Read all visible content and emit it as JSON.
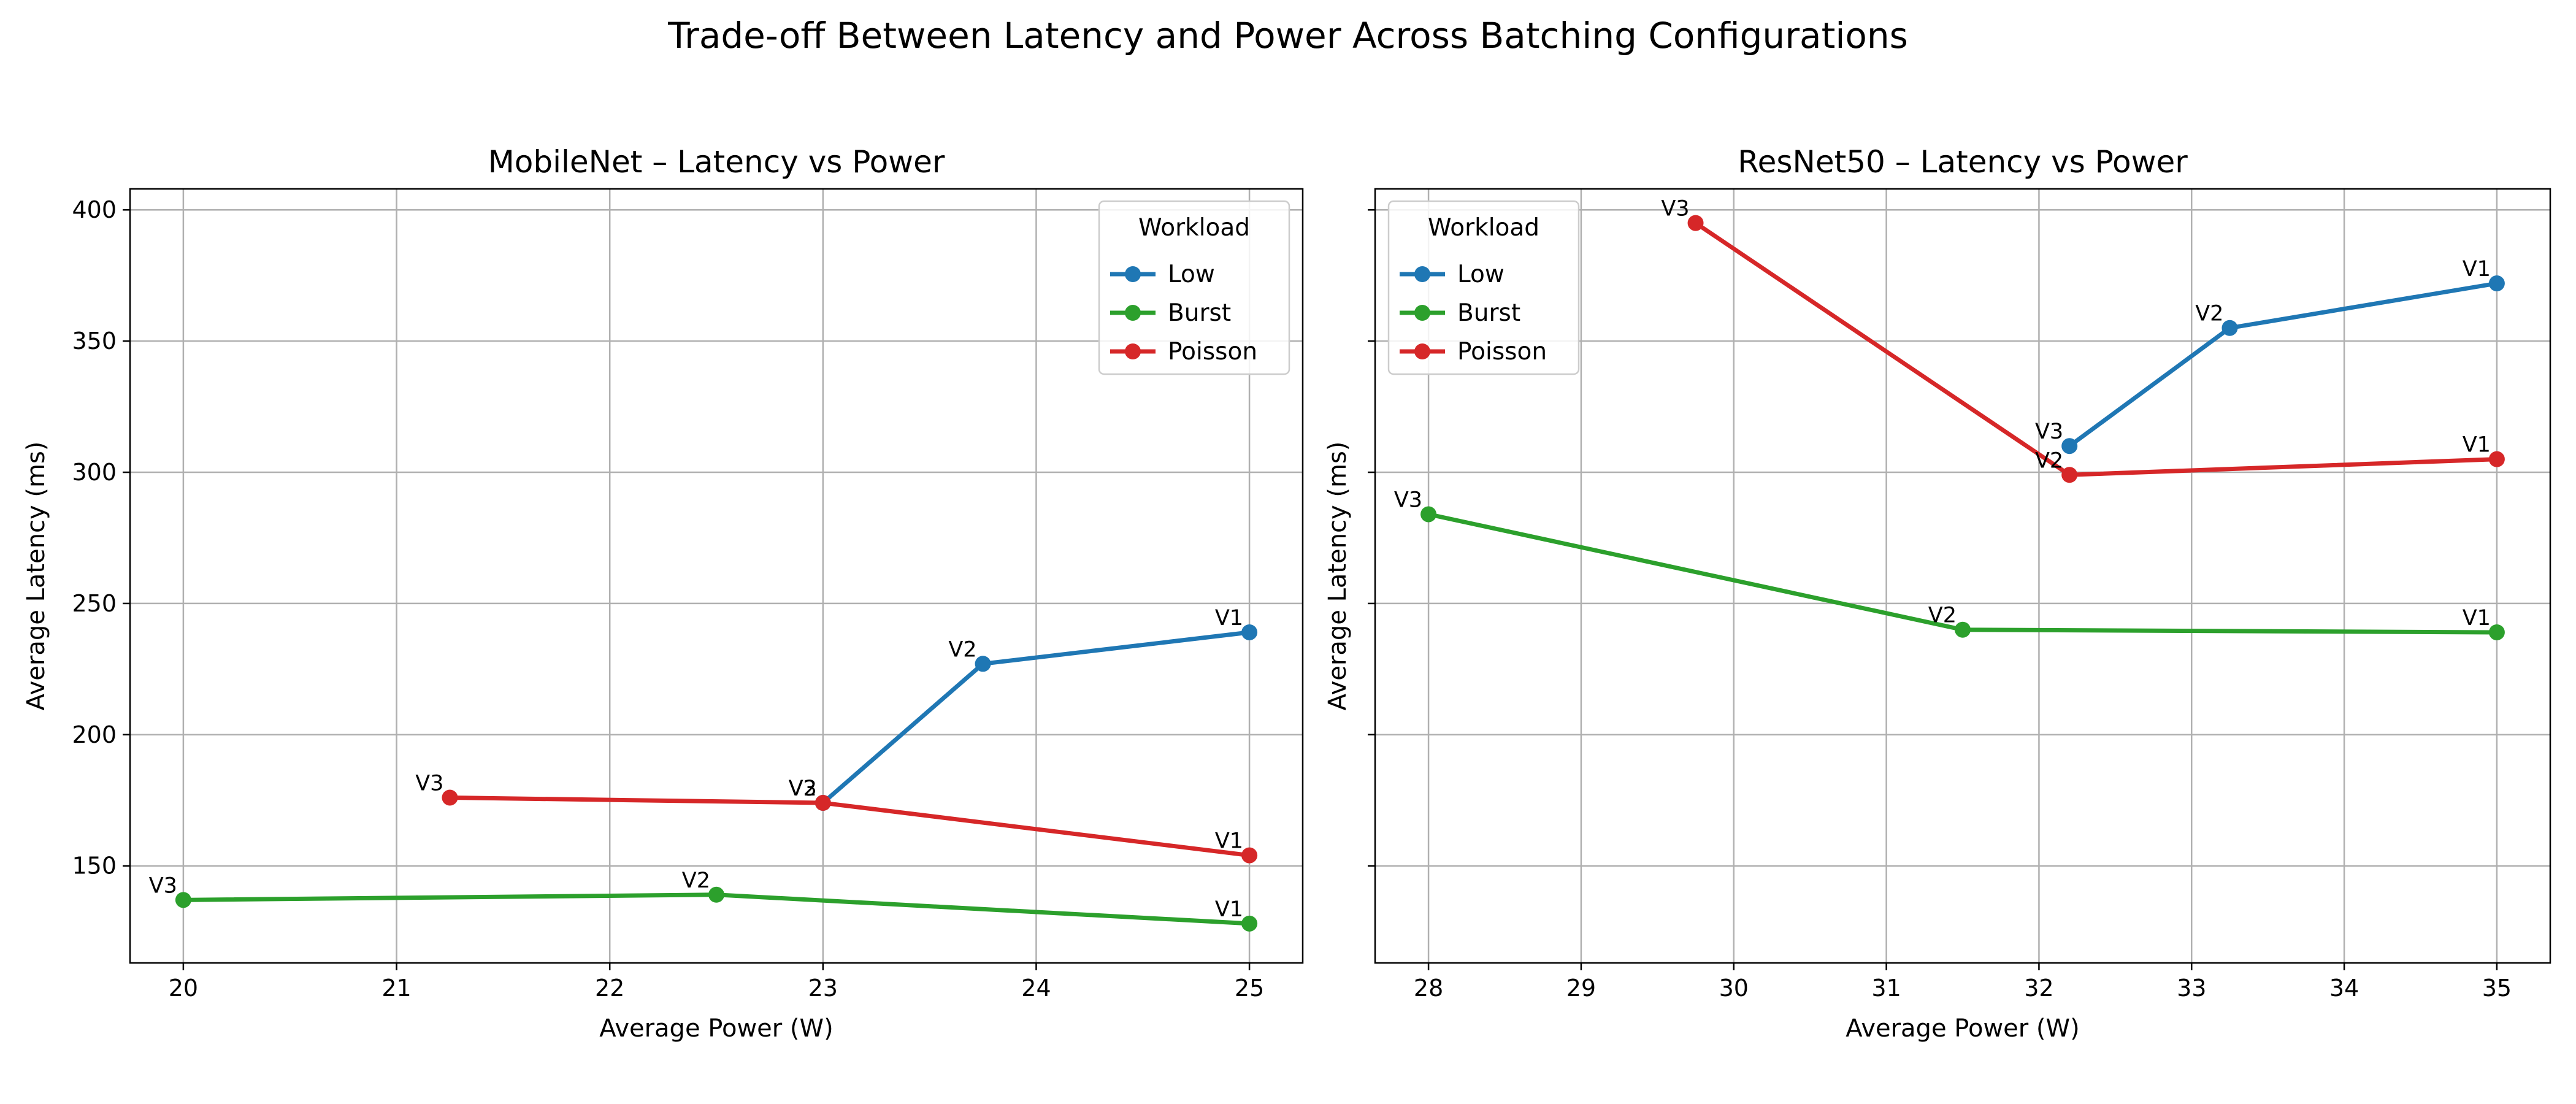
{
  "figure": {
    "title": "Trade-off Between Latency and Power Across Batching Configurations"
  },
  "colors": {
    "Low": "#1f77b4",
    "Burst": "#2ca02c",
    "Poisson": "#d62728"
  },
  "chart_data": [
    {
      "type": "line",
      "title": "MobileNet – Latency vs Power",
      "xlabel": "Average Power (W)",
      "ylabel": "Average Latency (ms)",
      "xlim": [
        19.75,
        25.25
      ],
      "ylim": [
        113,
        408
      ],
      "xticks": [
        20,
        21,
        22,
        23,
        24,
        25
      ],
      "yticks": [
        150,
        200,
        250,
        300,
        350,
        400
      ],
      "grid": true,
      "legend": {
        "title": "Workload",
        "position": "top-right"
      },
      "series": [
        {
          "name": "Low",
          "points": [
            {
              "label": "V1",
              "x": 25.0,
              "y": 239
            },
            {
              "label": "V2",
              "x": 23.75,
              "y": 227
            },
            {
              "label": "V3",
              "x": 23.0,
              "y": 174
            }
          ]
        },
        {
          "name": "Burst",
          "points": [
            {
              "label": "V1",
              "x": 25.0,
              "y": 128
            },
            {
              "label": "V2",
              "x": 22.5,
              "y": 139
            },
            {
              "label": "V3",
              "x": 20.0,
              "y": 137
            }
          ]
        },
        {
          "name": "Poisson",
          "points": [
            {
              "label": "V1",
              "x": 25.0,
              "y": 154
            },
            {
              "label": "V2",
              "x": 23.0,
              "y": 174
            },
            {
              "label": "V3",
              "x": 21.25,
              "y": 176
            }
          ]
        }
      ]
    },
    {
      "type": "line",
      "title": "ResNet50 – Latency vs Power",
      "xlabel": "Average Power (W)",
      "ylabel": "Average Latency (ms)",
      "xlim": [
        27.65,
        35.35
      ],
      "ylim": [
        113,
        408
      ],
      "xticks": [
        28,
        29,
        30,
        31,
        32,
        33,
        34,
        35
      ],
      "yticks": [
        150,
        200,
        250,
        300,
        350,
        400
      ],
      "show_ytick_labels": false,
      "grid": true,
      "legend": {
        "title": "Workload",
        "position": "top-left"
      },
      "series": [
        {
          "name": "Low",
          "points": [
            {
              "label": "V1",
              "x": 35.0,
              "y": 372
            },
            {
              "label": "V2",
              "x": 33.25,
              "y": 355
            },
            {
              "label": "V3",
              "x": 32.2,
              "y": 310
            }
          ]
        },
        {
          "name": "Burst",
          "points": [
            {
              "label": "V1",
              "x": 35.0,
              "y": 239
            },
            {
              "label": "V2",
              "x": 31.5,
              "y": 240
            },
            {
              "label": "V3",
              "x": 28.0,
              "y": 284
            }
          ]
        },
        {
          "name": "Poisson",
          "points": [
            {
              "label": "V1",
              "x": 35.0,
              "y": 305
            },
            {
              "label": "V2",
              "x": 32.2,
              "y": 299
            },
            {
              "label": "V3",
              "x": 29.75,
              "y": 395
            }
          ]
        }
      ]
    }
  ]
}
